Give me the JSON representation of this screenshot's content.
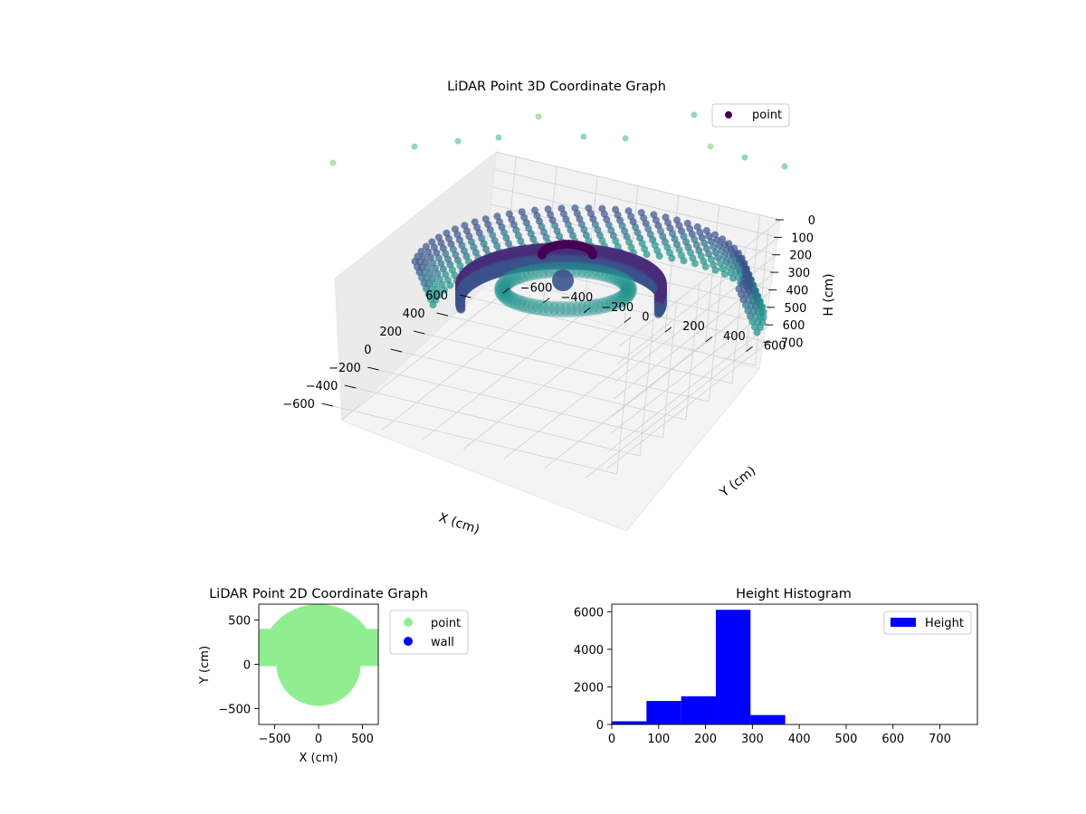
{
  "chart_data": [
    {
      "type": "scatter3d",
      "title": "LiDAR Point 3D Coordinate Graph",
      "xlabel": "X (cm)",
      "ylabel": "Y (cm)",
      "zlabel": "H (cm)",
      "xlim": [
        -700,
        700
      ],
      "ylim": [
        -700,
        700
      ],
      "zlim": [
        0,
        780
      ],
      "z_inverted": true,
      "xticks": [
        "−600",
        "−400",
        "−200",
        "0",
        "200",
        "400",
        "600"
      ],
      "yticks": [
        "−600",
        "−400",
        "−200",
        "0",
        "200",
        "400",
        "600"
      ],
      "zticks": [
        "0",
        "100",
        "200",
        "300",
        "400",
        "500",
        "600",
        "700"
      ],
      "legend": [
        "point"
      ],
      "legend_loc": "upper right",
      "colormap": "viridis",
      "grid": true
    },
    {
      "type": "scatter",
      "title": "LiDAR Point 2D Coordinate Graph",
      "xlabel": "X (cm)",
      "ylabel": "Y (cm)",
      "xlim": [
        -680,
        680
      ],
      "ylim": [
        -680,
        680
      ],
      "xticks": [
        "−500",
        "0",
        "500"
      ],
      "yticks": [
        "−500",
        "0",
        "500"
      ],
      "series": [
        {
          "name": "point",
          "color": "#90ee90"
        },
        {
          "name": "wall",
          "color": "#0000ff"
        }
      ],
      "legend_loc": "outside upper right"
    },
    {
      "type": "bar",
      "title": "Height Histogram",
      "xlim": [
        0,
        780
      ],
      "ylim": [
        0,
        6400
      ],
      "xticks": [
        "0",
        "100",
        "200",
        "300",
        "400",
        "500",
        "600",
        "700"
      ],
      "yticks": [
        "0",
        "2000",
        "4000",
        "6000"
      ],
      "bins": [
        [
          0,
          74,
          170
        ],
        [
          74,
          148,
          1250
        ],
        [
          148,
          222,
          1500
        ],
        [
          222,
          296,
          6100
        ],
        [
          296,
          370,
          500
        ]
      ],
      "series": [
        {
          "name": "Height",
          "color": "#0000ff"
        }
      ],
      "legend_loc": "upper right"
    }
  ]
}
